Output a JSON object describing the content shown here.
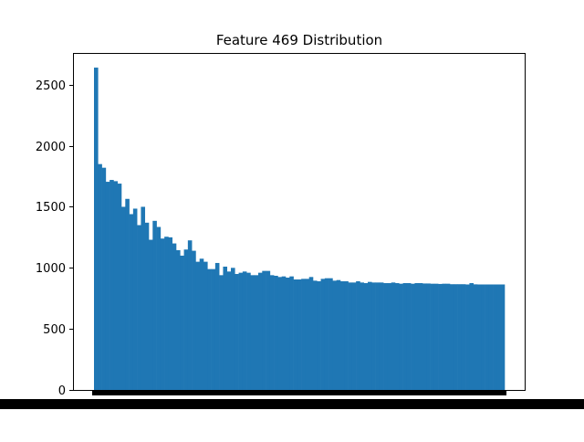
{
  "chart_data": {
    "type": "bar",
    "title": "Feature 469 Distribution",
    "xlabel": "",
    "ylabel": "",
    "ylim": [
      0,
      2760
    ],
    "yticks": [
      0,
      500,
      1000,
      1500,
      2000,
      2500
    ],
    "ytick_labels": [
      "0",
      "500",
      "1000",
      "1500",
      "2000",
      "2500"
    ],
    "grid": false,
    "legend": "none",
    "bar_color": "#1f77b4",
    "values": [
      2640,
      1850,
      1820,
      1705,
      1720,
      1710,
      1690,
      1500,
      1565,
      1440,
      1485,
      1350,
      1500,
      1370,
      1230,
      1385,
      1335,
      1240,
      1255,
      1250,
      1200,
      1145,
      1100,
      1150,
      1225,
      1140,
      1050,
      1075,
      1050,
      990,
      990,
      1040,
      940,
      1010,
      970,
      1000,
      950,
      960,
      970,
      960,
      940,
      940,
      960,
      975,
      975,
      940,
      935,
      925,
      930,
      920,
      930,
      905,
      905,
      910,
      910,
      925,
      895,
      890,
      910,
      915,
      915,
      895,
      900,
      890,
      890,
      880,
      880,
      890,
      880,
      875,
      885,
      880,
      880,
      880,
      875,
      875,
      880,
      875,
      870,
      875,
      875,
      870,
      875,
      875,
      872,
      872,
      870,
      870,
      868,
      870,
      870,
      866,
      866,
      866,
      866,
      864,
      875,
      865,
      864,
      864,
      864,
      864,
      864,
      864,
      864
    ]
  }
}
